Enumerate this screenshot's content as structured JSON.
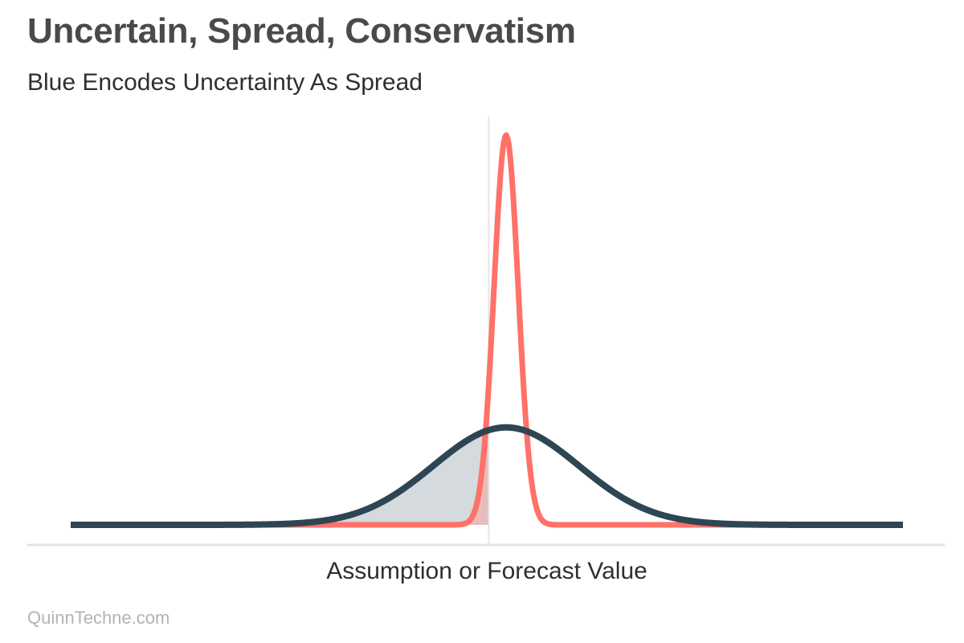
{
  "title": "Uncertain, Spread, Conservatism",
  "subtitle": "Blue Encodes Uncertainty As Spread",
  "credit": "QuinnTechne.com",
  "chart_data": {
    "type": "area",
    "title": "Uncertain, Spread, Conservatism",
    "subtitle": "Blue Encodes Uncertainty As Spread",
    "xlabel": "Assumption or Forecast Value",
    "ylabel": "",
    "grid": false,
    "legend": "none",
    "x_range": [
      -2.4,
      2.4
    ],
    "y_range": [
      0,
      1
    ],
    "threshold_x": -0.1,
    "series": [
      {
        "curve": "normal",
        "mean": 0,
        "sd": 0.07,
        "peak": 1.0,
        "color": "#ff7169",
        "shaded_left_of_threshold": true
      },
      {
        "curve": "normal",
        "mean": 0,
        "sd": 0.42,
        "peak": 0.25,
        "color": "#2e4653",
        "shaded_left_of_threshold": true
      }
    ],
    "colors": {
      "red": "#ff7169",
      "red_fill": "#f2a8a8",
      "navy": "#2e4653",
      "navy_fill": "#b8c1c6",
      "axis": "#e3e3e3",
      "threshold": "#e6e6e6"
    }
  }
}
